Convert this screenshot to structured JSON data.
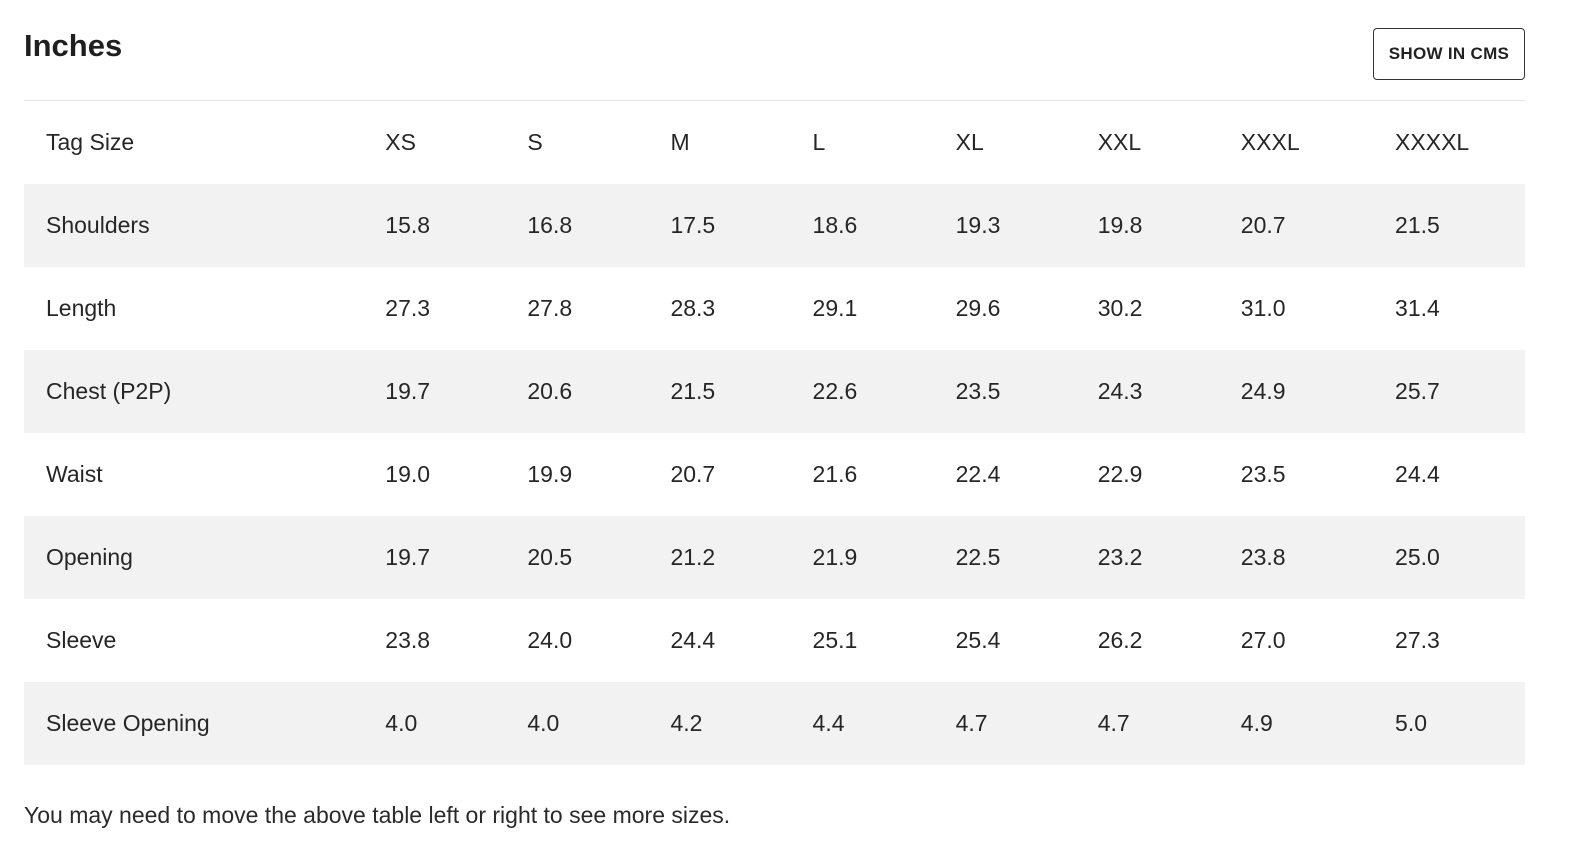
{
  "section": {
    "title": "Inches",
    "button_label": "SHOW IN CMS"
  },
  "table": {
    "headers": [
      "Tag Size",
      "XS",
      "S",
      "M",
      "L",
      "XL",
      "XXL",
      "XXXL",
      "XXXXL"
    ],
    "rows": [
      {
        "label": "Shoulders",
        "values": [
          "15.8",
          "16.8",
          "17.5",
          "18.6",
          "19.3",
          "19.8",
          "20.7",
          "21.5"
        ]
      },
      {
        "label": "Length",
        "values": [
          "27.3",
          "27.8",
          "28.3",
          "29.1",
          "29.6",
          "30.2",
          "31.0",
          "31.4"
        ]
      },
      {
        "label": "Chest (P2P)",
        "values": [
          "19.7",
          "20.6",
          "21.5",
          "22.6",
          "23.5",
          "24.3",
          "24.9",
          "25.7"
        ]
      },
      {
        "label": "Waist",
        "values": [
          "19.0",
          "19.9",
          "20.7",
          "21.6",
          "22.4",
          "22.9",
          "23.5",
          "24.4"
        ]
      },
      {
        "label": "Opening",
        "values": [
          "19.7",
          "20.5",
          "21.2",
          "21.9",
          "22.5",
          "23.2",
          "23.8",
          "25.0"
        ]
      },
      {
        "label": "Sleeve",
        "values": [
          "23.8",
          "24.0",
          "24.4",
          "25.1",
          "25.4",
          "26.2",
          "27.0",
          "27.3"
        ]
      },
      {
        "label": "Sleeve Opening",
        "values": [
          "4.0",
          "4.0",
          "4.2",
          "4.4",
          "4.7",
          "4.7",
          "4.9",
          "5.0"
        ]
      }
    ]
  },
  "footnote": "You may need to move the above table left or right to see more sizes."
}
